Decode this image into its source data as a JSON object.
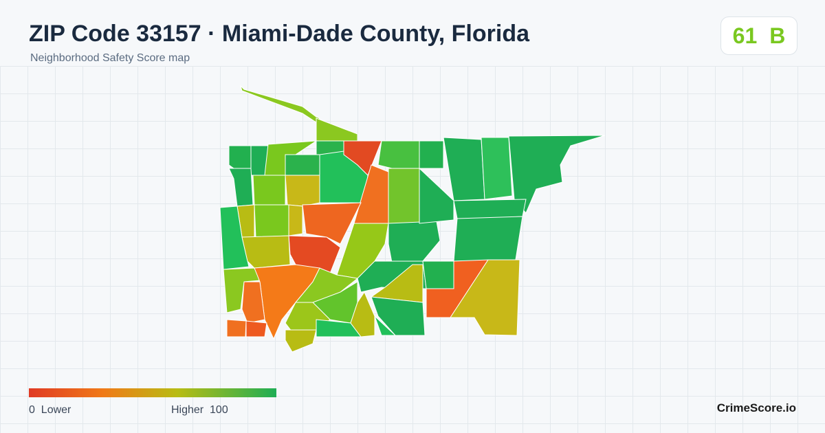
{
  "header": {
    "title": "ZIP Code 33157 · Miami-Dade County, Florida",
    "subtitle": "Neighborhood Safety Score map"
  },
  "badge": {
    "score": 61,
    "grade": "B"
  },
  "legend": {
    "min": 0,
    "min_label": "Lower",
    "max_label": "Higher",
    "max": 100
  },
  "footer": {
    "brand": "CrimeScore.io"
  }
}
